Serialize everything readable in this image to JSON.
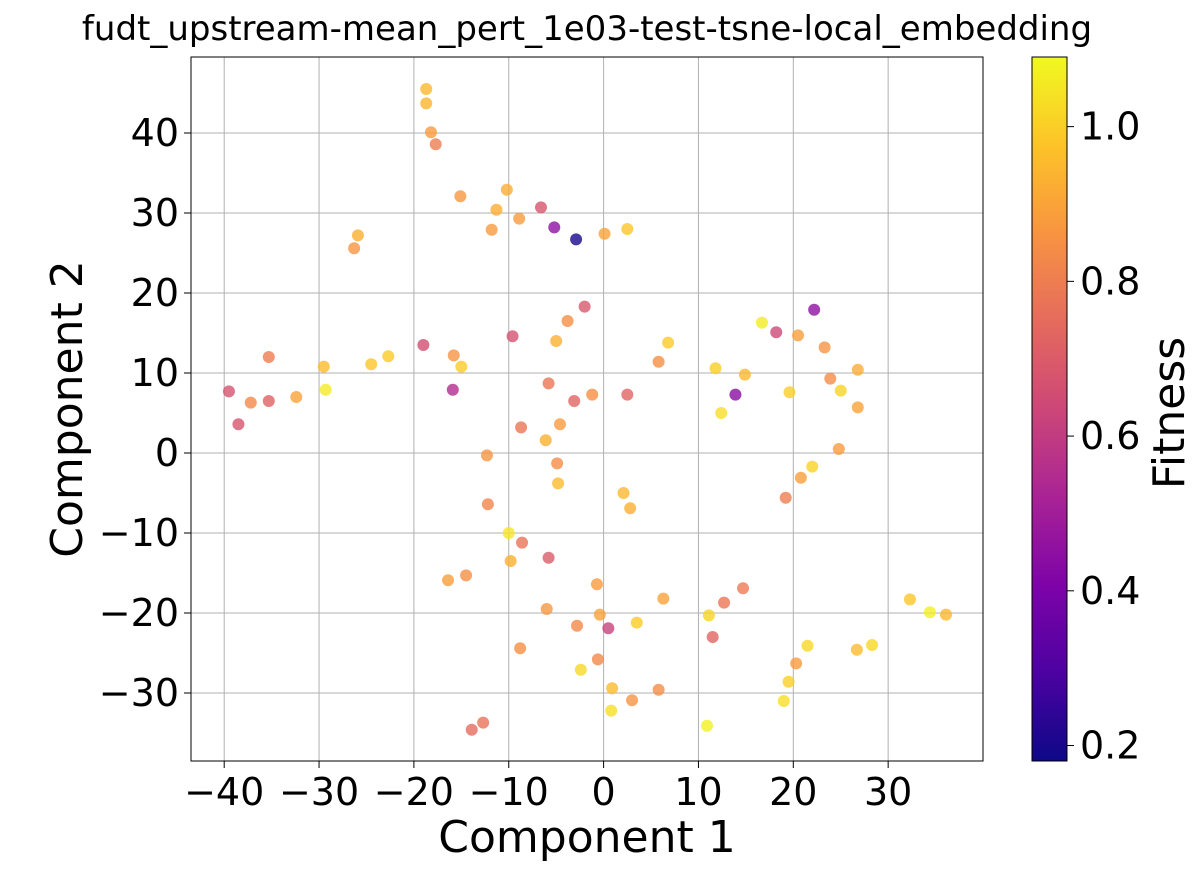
{
  "chart_data": {
    "type": "scatter",
    "title": "fudt_upstream-mean_pert_1e03-test-tsne-local_embedding",
    "xlabel": "Component 1",
    "ylabel": "Component 2",
    "xlim": [
      -43.5,
      40
    ],
    "ylim": [
      -38.5,
      49.5
    ],
    "xticks": [
      -40,
      -30,
      -20,
      -10,
      0,
      10,
      20,
      30
    ],
    "yticks": [
      -30,
      -20,
      -10,
      0,
      10,
      20,
      30,
      40
    ],
    "xtick_labels": [
      "−40",
      "−30",
      "−20",
      "−10",
      "0",
      "10",
      "20",
      "30"
    ],
    "ytick_labels": [
      "−30",
      "−20",
      "−10",
      "0",
      "10",
      "20",
      "30",
      "40"
    ],
    "grid": true,
    "colorbar": {
      "label": "Fitness",
      "colormap": "plasma",
      "range": [
        0.18,
        1.09
      ],
      "ticks": [
        0.2,
        0.4,
        0.6,
        0.8,
        1.0
      ],
      "tick_labels": [
        "0.2",
        "0.4",
        "0.6",
        "0.8",
        "1.0"
      ]
    },
    "points": [
      {
        "x": -18.7,
        "y": 45.5,
        "c": 0.95
      },
      {
        "x": -18.7,
        "y": 43.7,
        "c": 0.94
      },
      {
        "x": -18.2,
        "y": 40.1,
        "c": 0.88
      },
      {
        "x": -17.7,
        "y": 38.6,
        "c": 0.8
      },
      {
        "x": -15.1,
        "y": 32.1,
        "c": 0.87
      },
      {
        "x": -10.2,
        "y": 32.9,
        "c": 0.92
      },
      {
        "x": -11.3,
        "y": 30.4,
        "c": 0.92
      },
      {
        "x": -8.9,
        "y": 29.3,
        "c": 0.88
      },
      {
        "x": -6.6,
        "y": 30.7,
        "c": 0.68
      },
      {
        "x": -11.8,
        "y": 27.9,
        "c": 0.88
      },
      {
        "x": -5.2,
        "y": 28.2,
        "c": 0.45
      },
      {
        "x": -2.9,
        "y": 26.7,
        "c": 0.2
      },
      {
        "x": 0.1,
        "y": 27.4,
        "c": 0.9
      },
      {
        "x": 2.5,
        "y": 28.0,
        "c": 0.98
      },
      {
        "x": -25.9,
        "y": 27.2,
        "c": 0.93
      },
      {
        "x": -26.3,
        "y": 25.6,
        "c": 0.86
      },
      {
        "x": -2.0,
        "y": 18.3,
        "c": 0.69
      },
      {
        "x": -3.8,
        "y": 16.5,
        "c": 0.85
      },
      {
        "x": -9.6,
        "y": 14.6,
        "c": 0.67
      },
      {
        "x": -5.0,
        "y": 14.0,
        "c": 0.93
      },
      {
        "x": 6.8,
        "y": 13.8,
        "c": 0.99
      },
      {
        "x": 5.8,
        "y": 11.4,
        "c": 0.85
      },
      {
        "x": -19.0,
        "y": 13.5,
        "c": 0.66
      },
      {
        "x": -15.8,
        "y": 12.2,
        "c": 0.86
      },
      {
        "x": -15.0,
        "y": 10.8,
        "c": 0.99
      },
      {
        "x": -22.7,
        "y": 12.1,
        "c": 0.99
      },
      {
        "x": -24.5,
        "y": 11.1,
        "c": 0.98
      },
      {
        "x": -29.5,
        "y": 10.8,
        "c": 0.96
      },
      {
        "x": -29.3,
        "y": 7.9,
        "c": 1.06
      },
      {
        "x": -35.3,
        "y": 12.0,
        "c": 0.8
      },
      {
        "x": -32.4,
        "y": 7.0,
        "c": 0.9
      },
      {
        "x": -35.3,
        "y": 6.5,
        "c": 0.72
      },
      {
        "x": -37.2,
        "y": 6.3,
        "c": 0.83
      },
      {
        "x": -39.5,
        "y": 7.7,
        "c": 0.67
      },
      {
        "x": -38.5,
        "y": 3.6,
        "c": 0.68
      },
      {
        "x": -15.9,
        "y": 7.9,
        "c": 0.55
      },
      {
        "x": -5.8,
        "y": 8.7,
        "c": 0.78
      },
      {
        "x": -1.2,
        "y": 7.3,
        "c": 0.85
      },
      {
        "x": -3.1,
        "y": 6.5,
        "c": 0.73
      },
      {
        "x": 2.5,
        "y": 7.3,
        "c": 0.73
      },
      {
        "x": -8.7,
        "y": 3.2,
        "c": 0.78
      },
      {
        "x": -4.6,
        "y": 3.6,
        "c": 0.88
      },
      {
        "x": -6.1,
        "y": 1.6,
        "c": 0.93
      },
      {
        "x": -12.3,
        "y": -0.3,
        "c": 0.86
      },
      {
        "x": -4.9,
        "y": -1.3,
        "c": 0.84
      },
      {
        "x": -4.8,
        "y": -3.8,
        "c": 0.96
      },
      {
        "x": -12.2,
        "y": -6.4,
        "c": 0.82
      },
      {
        "x": 2.1,
        "y": -5.0,
        "c": 0.95
      },
      {
        "x": 2.8,
        "y": -6.9,
        "c": 0.93
      },
      {
        "x": -10.0,
        "y": -10.0,
        "c": 1.05
      },
      {
        "x": -8.6,
        "y": -11.2,
        "c": 0.77
      },
      {
        "x": -9.8,
        "y": -13.5,
        "c": 0.93
      },
      {
        "x": -5.8,
        "y": -13.1,
        "c": 0.7
      },
      {
        "x": -16.4,
        "y": -15.9,
        "c": 0.89
      },
      {
        "x": -14.5,
        "y": -15.3,
        "c": 0.85
      },
      {
        "x": -0.7,
        "y": -16.4,
        "c": 0.88
      },
      {
        "x": 6.3,
        "y": -18.2,
        "c": 0.9
      },
      {
        "x": -6.0,
        "y": -19.5,
        "c": 0.87
      },
      {
        "x": -0.4,
        "y": -20.2,
        "c": 0.9
      },
      {
        "x": 3.5,
        "y": -21.2,
        "c": 0.99
      },
      {
        "x": -2.8,
        "y": -21.6,
        "c": 0.83
      },
      {
        "x": 0.5,
        "y": -21.9,
        "c": 0.62
      },
      {
        "x": -8.8,
        "y": -24.4,
        "c": 0.85
      },
      {
        "x": -2.4,
        "y": -27.1,
        "c": 1.02
      },
      {
        "x": -0.6,
        "y": -25.8,
        "c": 0.83
      },
      {
        "x": 0.9,
        "y": -29.4,
        "c": 0.96
      },
      {
        "x": 0.8,
        "y": -32.2,
        "c": 1.03
      },
      {
        "x": 3.0,
        "y": -30.9,
        "c": 0.86
      },
      {
        "x": 5.8,
        "y": -29.6,
        "c": 0.84
      },
      {
        "x": -12.7,
        "y": -33.7,
        "c": 0.77
      },
      {
        "x": -13.9,
        "y": -34.6,
        "c": 0.75
      },
      {
        "x": 11.1,
        "y": -20.3,
        "c": 1.01
      },
      {
        "x": 12.7,
        "y": -18.7,
        "c": 0.78
      },
      {
        "x": 14.7,
        "y": -16.9,
        "c": 0.79
      },
      {
        "x": 11.5,
        "y": -23.0,
        "c": 0.73
      },
      {
        "x": 10.9,
        "y": -34.1,
        "c": 1.07
      },
      {
        "x": 20.3,
        "y": -26.3,
        "c": 0.88
      },
      {
        "x": 21.5,
        "y": -24.1,
        "c": 1.02
      },
      {
        "x": 19.5,
        "y": -28.6,
        "c": 1.0
      },
      {
        "x": 19.0,
        "y": -31.0,
        "c": 1.03
      },
      {
        "x": 26.7,
        "y": -24.6,
        "c": 0.96
      },
      {
        "x": 28.3,
        "y": -24.0,
        "c": 1.02
      },
      {
        "x": 32.3,
        "y": -18.3,
        "c": 0.98
      },
      {
        "x": 34.4,
        "y": -19.9,
        "c": 1.07
      },
      {
        "x": 36.1,
        "y": -20.2,
        "c": 0.95
      },
      {
        "x": 16.7,
        "y": 16.3,
        "c": 1.06
      },
      {
        "x": 22.2,
        "y": 17.9,
        "c": 0.45
      },
      {
        "x": 18.2,
        "y": 15.1,
        "c": 0.64
      },
      {
        "x": 20.5,
        "y": 14.7,
        "c": 0.89
      },
      {
        "x": 23.3,
        "y": 13.2,
        "c": 0.86
      },
      {
        "x": 11.8,
        "y": 10.6,
        "c": 1.0
      },
      {
        "x": 14.9,
        "y": 9.8,
        "c": 0.95
      },
      {
        "x": 13.9,
        "y": 7.3,
        "c": 0.44
      },
      {
        "x": 12.4,
        "y": 5.0,
        "c": 1.03
      },
      {
        "x": 19.6,
        "y": 7.6,
        "c": 1.0
      },
      {
        "x": 23.9,
        "y": 9.3,
        "c": 0.84
      },
      {
        "x": 25.0,
        "y": 7.8,
        "c": 1.01
      },
      {
        "x": 26.8,
        "y": 10.4,
        "c": 0.92
      },
      {
        "x": 26.8,
        "y": 5.7,
        "c": 0.9
      },
      {
        "x": 24.8,
        "y": 0.5,
        "c": 0.88
      },
      {
        "x": 22.0,
        "y": -1.7,
        "c": 1.01
      },
      {
        "x": 20.8,
        "y": -3.1,
        "c": 0.89
      },
      {
        "x": 19.2,
        "y": -5.6,
        "c": 0.8
      }
    ]
  }
}
